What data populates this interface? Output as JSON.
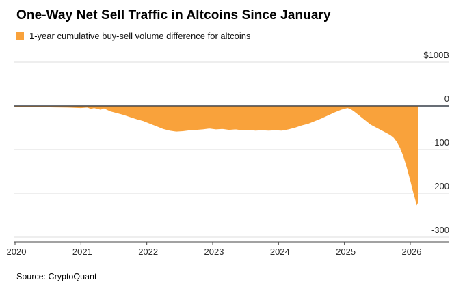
{
  "title": "One-Way Net Sell Traffic in Altcoins Since January",
  "legend": {
    "label": "1-year cumulative buy-sell volume difference for altcoins",
    "color": "#F9A23B",
    "swatch_icon": "square-swatch-icon"
  },
  "source": "Source: CryptoQuant",
  "chart_data": {
    "type": "area",
    "title": "One-Way Net Sell Traffic in Altcoins Since January",
    "series_name": "1-year cumulative buy-sell volume difference for altcoins",
    "unit": "$B",
    "color": "#F9A23B",
    "zero_line_color": "#2e3742",
    "gridline_color": "#dcdcdc",
    "axis_color": "#444444",
    "label_color": "#2b2b2b",
    "xlabel": "",
    "ylabel": "",
    "ylim": [
      -300,
      100
    ],
    "xlim": [
      2020.0,
      2026.6
    ],
    "grid": true,
    "legend_position": "top-left",
    "yticks": [
      {
        "value": 100,
        "label": "$100B"
      },
      {
        "value": 0,
        "label": "0"
      },
      {
        "value": -100,
        "label": "-100"
      },
      {
        "value": -200,
        "label": "-200"
      },
      {
        "value": -300,
        "label": "-300"
      }
    ],
    "xticks": [
      {
        "value": 2020,
        "label": "2020"
      },
      {
        "value": 2021,
        "label": "2021"
      },
      {
        "value": 2022,
        "label": "2022"
      },
      {
        "value": 2023,
        "label": "2023"
      },
      {
        "value": 2024,
        "label": "2024"
      },
      {
        "value": 2025,
        "label": "2025"
      },
      {
        "value": 2026,
        "label": "2026"
      }
    ],
    "x": [
      2020.0,
      2020.2,
      2020.4,
      2020.6,
      2020.8,
      2021.0,
      2021.1,
      2021.15,
      2021.2,
      2021.3,
      2021.35,
      2021.45,
      2021.55,
      2021.65,
      2021.75,
      2021.85,
      2021.95,
      2022.05,
      2022.15,
      2022.25,
      2022.35,
      2022.45,
      2022.55,
      2022.65,
      2022.75,
      2022.85,
      2022.95,
      2023.05,
      2023.15,
      2023.25,
      2023.35,
      2023.45,
      2023.55,
      2023.65,
      2023.75,
      2023.85,
      2023.95,
      2024.05,
      2024.15,
      2024.25,
      2024.35,
      2024.45,
      2024.55,
      2024.65,
      2024.75,
      2024.85,
      2024.95,
      2025.0,
      2025.05,
      2025.1,
      2025.15,
      2025.2,
      2025.3,
      2025.4,
      2025.5,
      2025.55,
      2025.6,
      2025.65,
      2025.7,
      2025.75,
      2025.8,
      2025.85,
      2025.9,
      2025.95,
      2026.0,
      2026.05,
      2026.1,
      2026.12
    ],
    "values": [
      -1,
      -1.5,
      -2,
      -2.5,
      -3,
      -4,
      -3,
      -6,
      -4,
      -8,
      -5,
      -12,
      -16,
      -20,
      -25,
      -30,
      -34,
      -40,
      -46,
      -52,
      -56,
      -58,
      -57,
      -55,
      -54,
      -53,
      -51,
      -53,
      -52,
      -54,
      -53,
      -55,
      -54,
      -56,
      -55,
      -56,
      -55,
      -56,
      -53,
      -49,
      -44,
      -40,
      -34,
      -28,
      -21,
      -14,
      -8,
      -6,
      -4,
      -7,
      -12,
      -18,
      -30,
      -42,
      -50,
      -54,
      -58,
      -62,
      -66,
      -72,
      -82,
      -96,
      -115,
      -140,
      -168,
      -198,
      -225,
      -218
    ]
  }
}
